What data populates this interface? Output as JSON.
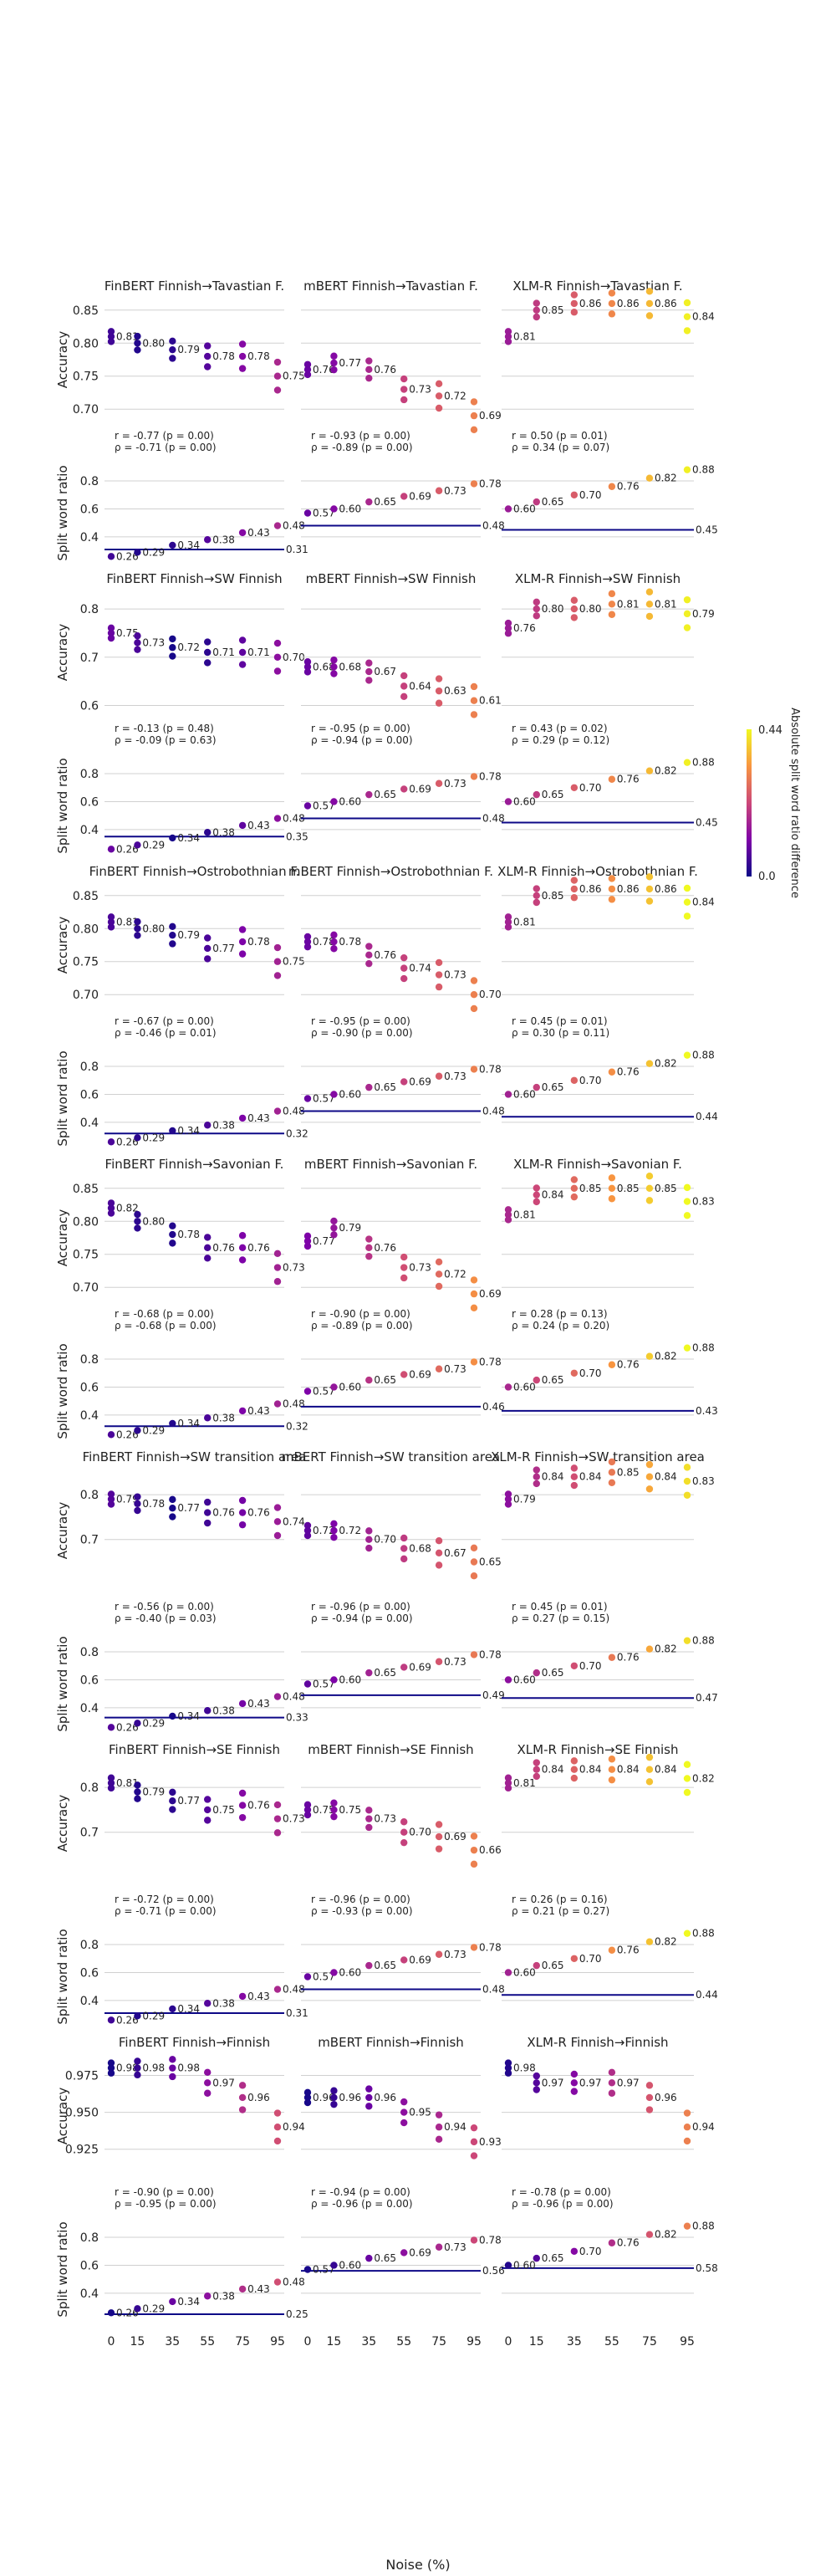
{
  "figure": {
    "xlabel": "Noise (%)",
    "colorbar": {
      "label": "Absolute split word ratio difference",
      "min_label": "0.0",
      "max_label": "0.44",
      "colormap": "plasma",
      "range": [
        0,
        0.44
      ]
    }
  },
  "chart_data": {
    "type": "scatter",
    "x_ticks": [
      0,
      15,
      35,
      55,
      75,
      95
    ],
    "x_tick_labels": [
      "0",
      "15",
      "35",
      "55",
      "75",
      "95"
    ],
    "acc_ylabel": "Accuracy",
    "swr_ylabel": "Split word ratio",
    "models": [
      "FinBERT",
      "mBERT",
      "XLM-R"
    ],
    "model_swr_means": {
      "FinBERT": [
        0.26,
        0.29,
        0.34,
        0.38,
        0.43,
        0.48
      ],
      "mBERT": [
        0.57,
        0.6,
        0.65,
        0.69,
        0.73,
        0.78
      ],
      "XLM-R": [
        0.6,
        0.65,
        0.7,
        0.76,
        0.82,
        0.88
      ]
    },
    "model_swr_mean_labels": {
      "FinBERT": [
        "0.26",
        "0.29",
        "0.34",
        "0.38",
        "0.43",
        "0.48"
      ],
      "mBERT": [
        "0.57",
        "0.60",
        "0.65",
        "0.69",
        "0.73",
        "0.78"
      ],
      "XLM-R": [
        "0.60",
        "0.65",
        "0.70",
        "0.76",
        "0.82",
        "0.88"
      ]
    },
    "rows": [
      {
        "acc_yticks": [
          0.7,
          0.75,
          0.8,
          0.85
        ],
        "acc_ytick_labels": [
          "0.70",
          "0.75",
          "0.80",
          "0.85"
        ],
        "acc_ylim": [
          0.68,
          0.87
        ],
        "swr_yticks": [
          0.4,
          0.6,
          0.8
        ],
        "swr_ytick_labels": [
          "0.4",
          "0.6",
          "0.8"
        ],
        "swr_ylim": [
          0.22,
          0.92
        ],
        "panels": [
          {
            "title": "FinBERT Finnish→Tavastian F.",
            "acc_means": [
              0.81,
              0.8,
              0.79,
              0.78,
              0.78,
              0.75
            ],
            "acc_mean_labels": [
              "0.81",
              "0.80",
              "0.79",
              "0.78",
              "0.78",
              "0.75"
            ],
            "target_swr": 0.31,
            "target_swr_label": "0.31",
            "stat_r": "r = -0.77 (p = 0.00)",
            "stat_rho": "ρ = -0.71 (p = 0.00)"
          },
          {
            "title": "mBERT Finnish→Tavastian F.",
            "acc_means": [
              0.76,
              0.77,
              0.76,
              0.73,
              0.72,
              0.69
            ],
            "acc_mean_labels": [
              "0.76",
              "0.77",
              "0.76",
              "0.73",
              "0.72",
              "0.69"
            ],
            "target_swr": 0.48,
            "target_swr_label": "0.48",
            "stat_r": "r = -0.93 (p = 0.00)",
            "stat_rho": "ρ = -0.89 (p = 0.00)"
          },
          {
            "title": "XLM-R Finnish→Tavastian F.",
            "acc_means": [
              0.81,
              0.85,
              0.86,
              0.86,
              0.86,
              0.84
            ],
            "acc_mean_labels": [
              "0.81",
              "0.85",
              "0.86",
              "0.86",
              "0.86",
              "0.84"
            ],
            "target_swr": 0.45,
            "target_swr_label": "0.45",
            "stat_r": "r = 0.50 (p = 0.01)",
            "stat_rho": "ρ = 0.34 (p = 0.07)"
          }
        ]
      },
      {
        "acc_yticks": [
          0.6,
          0.7,
          0.8
        ],
        "acc_ytick_labels": [
          "0.6",
          "0.7",
          "0.8"
        ],
        "acc_ylim": [
          0.58,
          0.84
        ],
        "swr_yticks": [
          0.4,
          0.6,
          0.8
        ],
        "swr_ytick_labels": [
          "0.4",
          "0.6",
          "0.8"
        ],
        "swr_ylim": [
          0.22,
          0.92
        ],
        "panels": [
          {
            "title": "FinBERT Finnish→SW Finnish",
            "acc_means": [
              0.75,
              0.73,
              0.72,
              0.71,
              0.71,
              0.7
            ],
            "acc_mean_labels": [
              "0.75",
              "0.73",
              "0.72",
              "0.71",
              "0.71",
              "0.70"
            ],
            "target_swr": 0.35,
            "target_swr_label": "0.35",
            "stat_r": "r = -0.13 (p = 0.48)",
            "stat_rho": "ρ = -0.09 (p = 0.63)"
          },
          {
            "title": "mBERT Finnish→SW Finnish",
            "acc_means": [
              0.68,
              0.68,
              0.67,
              0.64,
              0.63,
              0.61
            ],
            "acc_mean_labels": [
              "0.68",
              "0.68",
              "0.67",
              "0.64",
              "0.63",
              "0.61"
            ],
            "target_swr": 0.48,
            "target_swr_label": "0.48",
            "stat_r": "r = -0.95 (p = 0.00)",
            "stat_rho": "ρ = -0.94 (p = 0.00)"
          },
          {
            "title": "XLM-R Finnish→SW Finnish",
            "acc_means": [
              0.76,
              0.8,
              0.8,
              0.81,
              0.81,
              0.79
            ],
            "acc_mean_labels": [
              "0.76",
              "0.80",
              "0.80",
              "0.81",
              "0.81",
              "0.79"
            ],
            "target_swr": 0.45,
            "target_swr_label": "0.45",
            "stat_r": "r = 0.43 (p = 0.02)",
            "stat_rho": "ρ = 0.29 (p = 0.12)"
          }
        ]
      },
      {
        "acc_yticks": [
          0.7,
          0.75,
          0.8,
          0.85
        ],
        "acc_ytick_labels": [
          "0.70",
          "0.75",
          "0.80",
          "0.85"
        ],
        "acc_ylim": [
          0.68,
          0.87
        ],
        "swr_yticks": [
          0.4,
          0.6,
          0.8
        ],
        "swr_ytick_labels": [
          "0.4",
          "0.6",
          "0.8"
        ],
        "swr_ylim": [
          0.22,
          0.92
        ],
        "panels": [
          {
            "title": "FinBERT Finnish→Ostrobothnian F.",
            "acc_means": [
              0.81,
              0.8,
              0.79,
              0.77,
              0.78,
              0.75
            ],
            "acc_mean_labels": [
              "0.81",
              "0.80",
              "0.79",
              "0.77",
              "0.78",
              "0.75"
            ],
            "target_swr": 0.32,
            "target_swr_label": "0.32",
            "stat_r": "r = -0.67 (p = 0.00)",
            "stat_rho": "ρ = -0.46 (p = 0.01)"
          },
          {
            "title": "mBERT Finnish→Ostrobothnian F.",
            "acc_means": [
              0.78,
              0.78,
              0.76,
              0.74,
              0.73,
              0.7
            ],
            "acc_mean_labels": [
              "0.78",
              "0.78",
              "0.76",
              "0.74",
              "0.73",
              "0.70"
            ],
            "target_swr": 0.48,
            "target_swr_label": "0.48",
            "stat_r": "r = -0.95 (p = 0.00)",
            "stat_rho": "ρ = -0.90 (p = 0.00)"
          },
          {
            "title": "XLM-R Finnish→Ostrobothnian F.",
            "acc_means": [
              0.81,
              0.85,
              0.86,
              0.86,
              0.86,
              0.84
            ],
            "acc_mean_labels": [
              "0.81",
              "0.85",
              "0.86",
              "0.86",
              "0.86",
              "0.84"
            ],
            "target_swr": 0.44,
            "target_swr_label": "0.44",
            "stat_r": "r = 0.45 (p = 0.01)",
            "stat_rho": "ρ = 0.30 (p = 0.11)"
          }
        ]
      },
      {
        "acc_yticks": [
          0.7,
          0.75,
          0.8,
          0.85
        ],
        "acc_ytick_labels": [
          "0.70",
          "0.75",
          "0.80",
          "0.85"
        ],
        "acc_ylim": [
          0.68,
          0.87
        ],
        "swr_yticks": [
          0.4,
          0.6,
          0.8
        ],
        "swr_ytick_labels": [
          "0.4",
          "0.6",
          "0.8"
        ],
        "swr_ylim": [
          0.22,
          0.92
        ],
        "panels": [
          {
            "title": "FinBERT Finnish→Savonian F.",
            "acc_means": [
              0.82,
              0.8,
              0.78,
              0.76,
              0.76,
              0.73
            ],
            "acc_mean_labels": [
              "0.82",
              "0.80",
              "0.78",
              "0.76",
              "0.76",
              "0.73"
            ],
            "target_swr": 0.32,
            "target_swr_label": "0.32",
            "stat_r": "r = -0.68 (p = 0.00)",
            "stat_rho": "ρ = -0.68 (p = 0.00)"
          },
          {
            "title": "mBERT Finnish→Savonian F.",
            "acc_means": [
              0.77,
              0.79,
              0.76,
              0.73,
              0.72,
              0.69
            ],
            "acc_mean_labels": [
              "0.77",
              "0.79",
              "0.76",
              "0.73",
              "0.72",
              "0.69"
            ],
            "target_swr": 0.46,
            "target_swr_label": "0.46",
            "stat_r": "r = -0.90 (p = 0.00)",
            "stat_rho": "ρ = -0.89 (p = 0.00)"
          },
          {
            "title": "XLM-R Finnish→Savonian F.",
            "acc_means": [
              0.81,
              0.84,
              0.85,
              0.85,
              0.85,
              0.83
            ],
            "acc_mean_labels": [
              "0.81",
              "0.84",
              "0.85",
              "0.85",
              "0.85",
              "0.83"
            ],
            "target_swr": 0.43,
            "target_swr_label": "0.43",
            "stat_r": "r = 0.28 (p = 0.13)",
            "stat_rho": "ρ = 0.24 (p = 0.20)"
          }
        ]
      },
      {
        "acc_yticks": [
          0.7,
          0.8
        ],
        "acc_ytick_labels": [
          "0.7",
          "0.8"
        ],
        "acc_ylim": [
          0.58,
          0.86
        ],
        "swr_yticks": [
          0.4,
          0.6,
          0.8
        ],
        "swr_ytick_labels": [
          "0.4",
          "0.6",
          "0.8"
        ],
        "swr_ylim": [
          0.22,
          0.92
        ],
        "panels": [
          {
            "title": "FinBERT Finnish→SW transition area",
            "acc_means": [
              0.79,
              0.78,
              0.77,
              0.76,
              0.76,
              0.74
            ],
            "acc_mean_labels": [
              "0.79",
              "0.78",
              "0.77",
              "0.76",
              "0.76",
              "0.74"
            ],
            "target_swr": 0.33,
            "target_swr_label": "0.33",
            "stat_r": "r = -0.56 (p = 0.00)",
            "stat_rho": "ρ = -0.40 (p = 0.03)"
          },
          {
            "title": "mBERT Finnish→SW transition area",
            "acc_means": [
              0.72,
              0.72,
              0.7,
              0.68,
              0.67,
              0.65
            ],
            "acc_mean_labels": [
              "0.72",
              "0.72",
              "0.70",
              "0.68",
              "0.67",
              "0.65"
            ],
            "target_swr": 0.49,
            "target_swr_label": "0.49",
            "stat_r": "r = -0.96 (p = 0.00)",
            "stat_rho": "ρ = -0.94 (p = 0.00)"
          },
          {
            "title": "XLM-R Finnish→SW transition area",
            "acc_means": [
              0.79,
              0.84,
              0.84,
              0.85,
              0.84,
              0.83
            ],
            "acc_mean_labels": [
              "0.79",
              "0.84",
              "0.84",
              "0.85",
              "0.84",
              "0.83"
            ],
            "target_swr": 0.47,
            "target_swr_label": "0.47",
            "stat_r": "r = 0.45 (p = 0.01)",
            "stat_rho": "ρ = 0.27 (p = 0.15)"
          }
        ]
      },
      {
        "acc_yticks": [
          0.7,
          0.8
        ],
        "acc_ytick_labels": [
          "0.7",
          "0.8"
        ],
        "acc_ylim": [
          0.58,
          0.86
        ],
        "swr_yticks": [
          0.4,
          0.6,
          0.8
        ],
        "swr_ytick_labels": [
          "0.4",
          "0.6",
          "0.8"
        ],
        "swr_ylim": [
          0.22,
          0.92
        ],
        "panels": [
          {
            "title": "FinBERT Finnish→SE Finnish",
            "acc_means": [
              0.81,
              0.79,
              0.77,
              0.75,
              0.76,
              0.73
            ],
            "acc_mean_labels": [
              "0.81",
              "0.79",
              "0.77",
              "0.75",
              "0.76",
              "0.73"
            ],
            "target_swr": 0.31,
            "target_swr_label": "0.31",
            "stat_r": "r = -0.72 (p = 0.00)",
            "stat_rho": "ρ = -0.71 (p = 0.00)"
          },
          {
            "title": "mBERT Finnish→SE Finnish",
            "acc_means": [
              0.75,
              0.75,
              0.73,
              0.7,
              0.69,
              0.66
            ],
            "acc_mean_labels": [
              "0.75",
              "0.75",
              "0.73",
              "0.70",
              "0.69",
              "0.66"
            ],
            "target_swr": 0.48,
            "target_swr_label": "0.48",
            "stat_r": "r = -0.96 (p = 0.00)",
            "stat_rho": "ρ = -0.93 (p = 0.00)"
          },
          {
            "title": "XLM-R Finnish→SE Finnish",
            "acc_means": [
              0.81,
              0.84,
              0.84,
              0.84,
              0.84,
              0.82
            ],
            "acc_mean_labels": [
              "0.81",
              "0.84",
              "0.84",
              "0.84",
              "0.84",
              "0.82"
            ],
            "target_swr": 0.44,
            "target_swr_label": "0.44",
            "stat_r": "r = 0.26 (p = 0.16)",
            "stat_rho": "ρ = 0.21 (p = 0.27)"
          }
        ]
      },
      {
        "acc_yticks": [
          0.925,
          0.95,
          0.975
        ],
        "acc_ytick_labels": [
          "0.925",
          "0.950",
          "0.975"
        ],
        "acc_ylim": [
          0.905,
          0.99
        ],
        "swr_yticks": [
          0.4,
          0.6,
          0.8
        ],
        "swr_ytick_labels": [
          "0.4",
          "0.6",
          "0.8"
        ],
        "swr_ylim": [
          0.22,
          0.92
        ],
        "panels": [
          {
            "title": "FinBERT Finnish→Finnish",
            "acc_means": [
              0.98,
              0.98,
              0.98,
              0.97,
              0.96,
              0.94
            ],
            "acc_mean_labels": [
              "0.98",
              "0.98",
              "0.98",
              "0.97",
              "0.96",
              "0.94"
            ],
            "target_swr": 0.25,
            "target_swr_label": "0.25",
            "stat_r": "r = -0.90 (p = 0.00)",
            "stat_rho": "ρ = -0.95 (p = 0.00)"
          },
          {
            "title": "mBERT Finnish→Finnish",
            "acc_means": [
              0.96,
              0.96,
              0.96,
              0.95,
              0.94,
              0.93
            ],
            "acc_mean_labels": [
              "0.96",
              "0.96",
              "0.96",
              "0.95",
              "0.94",
              "0.93"
            ],
            "target_swr": 0.56,
            "target_swr_label": "0.56",
            "stat_r": "r = -0.94 (p = 0.00)",
            "stat_rho": "ρ = -0.96 (p = 0.00)"
          },
          {
            "title": "XLM-R Finnish→Finnish",
            "acc_means": [
              0.98,
              0.97,
              0.97,
              0.97,
              0.96,
              0.94
            ],
            "acc_mean_labels": [
              "0.98",
              "0.97",
              "0.97",
              "0.97",
              "0.96",
              "0.94"
            ],
            "target_swr": 0.58,
            "target_swr_label": "0.58",
            "stat_r": "r = -0.78 (p = 0.00)",
            "stat_rho": "ρ = -0.96 (p = 0.00)"
          }
        ]
      }
    ]
  }
}
